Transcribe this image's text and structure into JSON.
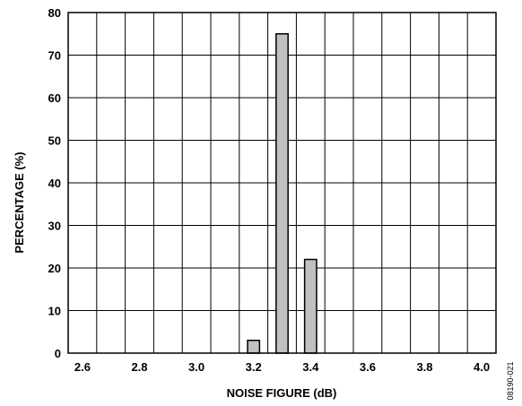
{
  "chart_data": {
    "type": "bar",
    "xlabel": "NOISE FIGURE (dB)",
    "ylabel": "PERCENTAGE (%)",
    "xlim": [
      2.55,
      4.05
    ],
    "ylim": [
      0,
      80
    ],
    "x_ticks": [
      "2.6",
      "2.8",
      "3.0",
      "3.2",
      "3.4",
      "3.6",
      "3.8",
      "4.0"
    ],
    "y_ticks": [
      "0",
      "10",
      "20",
      "30",
      "40",
      "50",
      "60",
      "70",
      "80"
    ],
    "grid": true,
    "bar_color": "#c0c0c0",
    "bars": [
      {
        "x": 3.2,
        "value": 3
      },
      {
        "x": 3.3,
        "value": 75
      },
      {
        "x": 3.4,
        "value": 22
      }
    ]
  },
  "figure_id": "08190-021"
}
